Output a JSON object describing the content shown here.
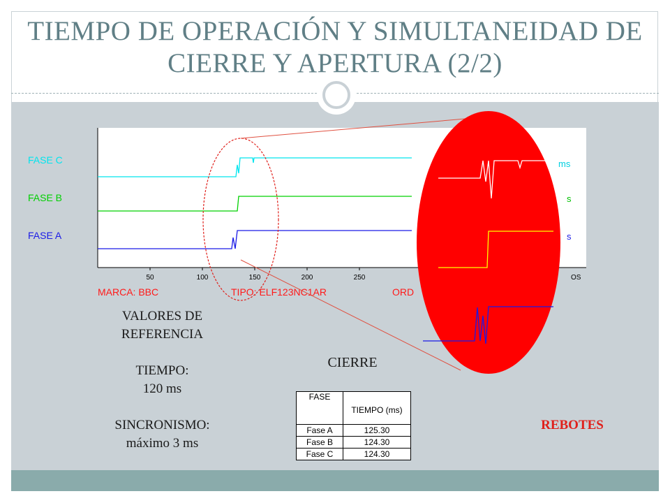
{
  "slide": {
    "title_line1": "TIEMPO DE OPERACIÓN Y SIMULTANEIDAD DE",
    "title_line2": "CIERRE Y APERTURA (2/2)"
  },
  "chart_data": {
    "type": "line",
    "series": [
      {
        "name": "FASE C",
        "color": "#00e5ee"
      },
      {
        "name": "FASE B",
        "color": "#00d000"
      },
      {
        "name": "FASE A",
        "color": "#1a1ae6"
      }
    ],
    "x_ticks": [
      "50",
      "100",
      "150",
      "200",
      "250"
    ],
    "xlim": [
      0,
      300
    ],
    "footer_labels": [
      "MARCA: BBC",
      "TIPO: ELF123NC1AR",
      "ORD"
    ],
    "zoom_labels": [
      "ms",
      "s",
      "s",
      "OS"
    ]
  },
  "reference": {
    "heading_line1": "VALORES DE",
    "heading_line2": "REFERENCIA",
    "time_label": "TIEMPO:",
    "time_value": "120 ms",
    "sync_label": "SINCRONISMO:",
    "sync_value": "máximo 3 ms"
  },
  "closing": {
    "heading": "CIERRE",
    "columns": [
      "FASE",
      "TIEMPO (ms)"
    ],
    "rows": [
      {
        "fase": "Fase A",
        "tiempo": "125.30"
      },
      {
        "fase": "Fase B",
        "tiempo": "124.30"
      },
      {
        "fase": "Fase C",
        "tiempo": "124.30"
      }
    ]
  },
  "rebotes_label": "REBOTES",
  "colors": {
    "title": "#607f86",
    "panel": "#c9d1d6",
    "footer": "#8aabab",
    "red": "#ff0000",
    "label_red": "#e0201b"
  }
}
